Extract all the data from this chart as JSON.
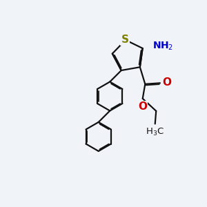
{
  "bg": "#f0f4f8",
  "bc": "#111111",
  "S_color": "#808000",
  "N_color": "#0000cc",
  "O_color": "#cc0000",
  "bw": 1.6,
  "dbl_off": 0.055,
  "figsize": [
    3.0,
    3.0
  ],
  "dpi": 100,
  "xlim": [
    -1.5,
    8.5
  ],
  "ylim": [
    -1.0,
    8.0
  ]
}
